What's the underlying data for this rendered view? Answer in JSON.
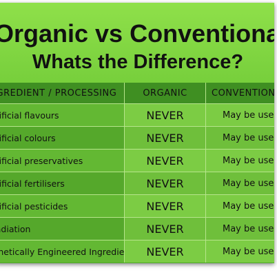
{
  "header": {
    "title": "Organic vs Conventional?",
    "subtitle": "Whats the Difference?"
  },
  "table": {
    "columns": [
      "INGREDIENT / PROCESSING",
      "ORGANIC",
      "CONVENTIONAL"
    ],
    "rows": [
      [
        "Artificial flavours",
        "NEVER",
        "May be used"
      ],
      [
        "Artificial colours",
        "NEVER",
        "May be used"
      ],
      [
        "Artificial preservatives",
        "NEVER",
        "May be used"
      ],
      [
        "Artificial fertilisers",
        "NEVER",
        "May be used"
      ],
      [
        "Artificial pesticides",
        "NEVER",
        "May be used"
      ],
      [
        "Irradiation",
        "NEVER",
        "May be used"
      ],
      [
        "Genetically Engineered Ingredients",
        "NEVER",
        "May be used"
      ]
    ]
  }
}
